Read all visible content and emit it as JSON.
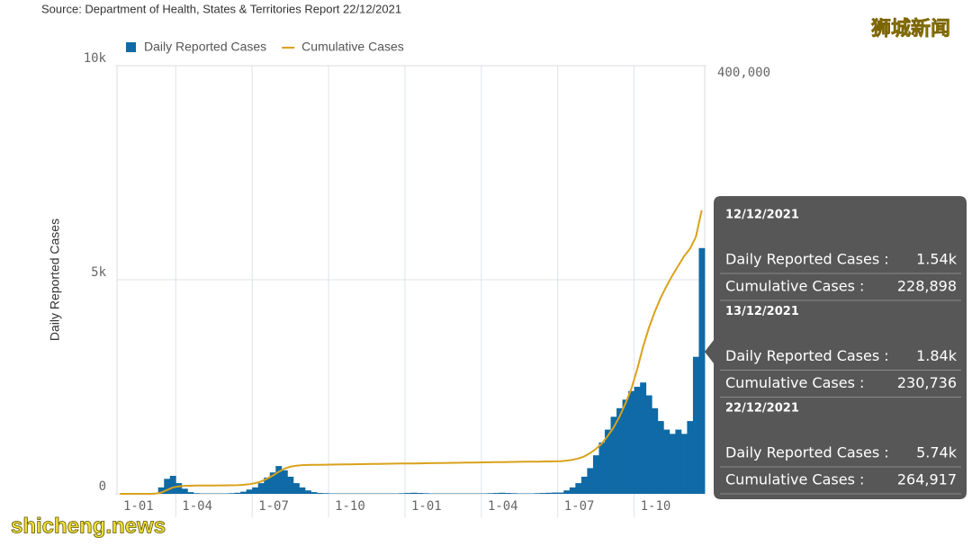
{
  "chart_data": {
    "type": "combo",
    "subtitle": "Source: Department of Health, States & Territories Report 22/12/2021",
    "y_label": "Daily Reported Cases",
    "categories": [
      "1-01",
      null,
      null,
      null,
      null,
      null,
      null,
      null,
      null,
      null,
      "1-04",
      null,
      null,
      null,
      null,
      null,
      null,
      null,
      null,
      null,
      null,
      null,
      null,
      "1-07",
      null,
      null,
      null,
      null,
      null,
      null,
      null,
      null,
      null,
      null,
      null,
      null,
      "1-10",
      null,
      null,
      null,
      null,
      null,
      null,
      null,
      null,
      null,
      null,
      null,
      null,
      "1-01",
      null,
      null,
      null,
      null,
      null,
      null,
      null,
      null,
      null,
      null,
      null,
      null,
      "1-04",
      null,
      null,
      null,
      null,
      null,
      null,
      null,
      null,
      null,
      null,
      null,
      null,
      "1-07",
      null,
      null,
      null,
      null,
      null,
      null,
      null,
      null,
      null,
      null,
      null,
      null,
      "1-10",
      null,
      null,
      null,
      null,
      null,
      null,
      null,
      null,
      null,
      null,
      null
    ],
    "ylim": [
      0,
      10000
    ],
    "yticks": [
      {
        "value": 0,
        "label": "0"
      },
      {
        "value": 5000,
        "label": "5k"
      },
      {
        "value": 10000,
        "label": "10k"
      }
    ],
    "y2lim": [
      0,
      400000
    ],
    "y2ticks": [
      {
        "value": 400000,
        "label": "400,000"
      }
    ],
    "grid": true,
    "series": [
      {
        "name": "Daily Reported Cases",
        "type": "bar",
        "color": "#0f6aa6",
        "values": [
          0,
          0,
          0,
          0,
          0,
          5,
          20,
          150,
          350,
          420,
          250,
          120,
          40,
          15,
          10,
          10,
          10,
          10,
          10,
          15,
          25,
          50,
          100,
          150,
          250,
          380,
          500,
          650,
          550,
          400,
          250,
          150,
          80,
          40,
          20,
          15,
          10,
          10,
          10,
          10,
          10,
          10,
          10,
          10,
          10,
          10,
          10,
          10,
          15,
          20,
          25,
          20,
          15,
          10,
          10,
          10,
          10,
          10,
          10,
          10,
          10,
          10,
          10,
          15,
          20,
          25,
          20,
          15,
          10,
          10,
          10,
          15,
          20,
          25,
          30,
          30,
          80,
          150,
          250,
          400,
          600,
          900,
          1200,
          1500,
          1800,
          2000,
          2200,
          2400,
          2500,
          2600,
          2300,
          2000,
          1700,
          1500,
          1400,
          1500,
          1400,
          1700,
          3200,
          5740
        ]
      },
      {
        "name": "Cumulative Cases",
        "type": "line",
        "axis": "y2",
        "color": "#d9a21b",
        "values": [
          0,
          0,
          0,
          0,
          0,
          20,
          150,
          1200,
          3500,
          6000,
          7000,
          7500,
          7600,
          7700,
          7700,
          7800,
          7800,
          7900,
          7900,
          8000,
          8100,
          8400,
          9000,
          10000,
          11500,
          14000,
          17000,
          20500,
          23500,
          25300,
          26300,
          26800,
          27000,
          27080,
          27160,
          27240,
          27320,
          27400,
          27480,
          27560,
          27640,
          27720,
          27800,
          27880,
          27960,
          28040,
          28120,
          28200,
          28280,
          28360,
          28440,
          28520,
          28600,
          28680,
          28760,
          28840,
          28920,
          29000,
          29080,
          29160,
          29240,
          29320,
          29400,
          29480,
          29560,
          29640,
          29720,
          29800,
          29880,
          29960,
          30040,
          30120,
          30200,
          30280,
          30360,
          30500,
          31000,
          31800,
          33000,
          35000,
          38000,
          42000,
          47000,
          54000,
          62000,
          72000,
          84000,
          98000,
          116000,
          137000,
          155000,
          170000,
          183000,
          194000,
          204000,
          213000,
          222000,
          229000,
          240000,
          264917
        ]
      }
    ],
    "tooltip": [
      {
        "date": "12/12/2021",
        "rows": [
          {
            "label": "Daily Reported Cases :",
            "value": "1.54k"
          },
          {
            "label": "Cumulative Cases :",
            "value": "228,898"
          }
        ]
      },
      {
        "date": "13/12/2021",
        "rows": [
          {
            "label": "Daily Reported Cases :",
            "value": "1.84k"
          },
          {
            "label": "Cumulative Cases :",
            "value": "230,736"
          }
        ]
      },
      {
        "date": "22/12/2021",
        "rows": [
          {
            "label": "Daily Reported Cases :",
            "value": "5.74k"
          },
          {
            "label": "Cumulative Cases :",
            "value": "264,917"
          }
        ]
      }
    ]
  },
  "watermarks": {
    "top": "狮城新闻",
    "bottom": "shicheng.news"
  }
}
